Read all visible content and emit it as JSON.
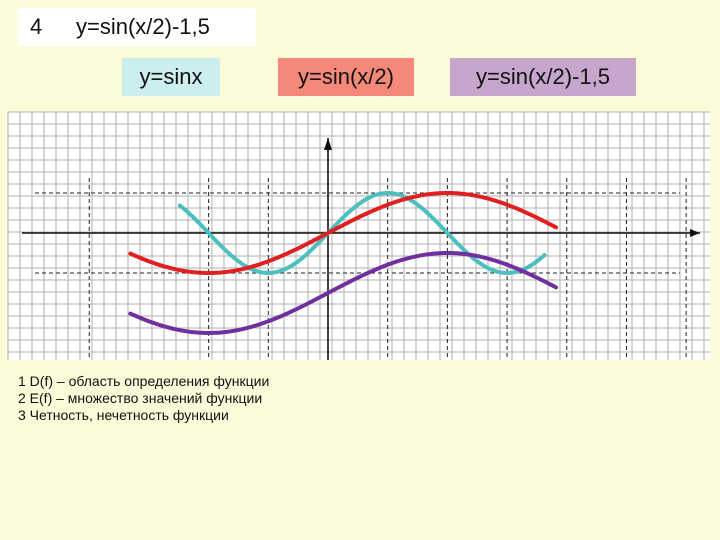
{
  "title": {
    "number": "4",
    "formula": "y=sin(x/2)-1,5"
  },
  "legend": [
    {
      "label": "y=sinx",
      "bg": "#cdeeee",
      "line": "#4dbfbf"
    },
    {
      "label": "y=sin(x/2)",
      "bg": "#f4897a",
      "line": "#e02020"
    },
    {
      "label": "y=sin(x/2)-1,5",
      "bg": "#c6a6cc",
      "line": "#7030a0"
    }
  ],
  "notes": [
    "1 D(f) – область определения функции",
    "2 E(f) – множество значений функции",
    "3 Четность, нечетность функции"
  ],
  "chart_data": {
    "type": "line",
    "title": "y=sin(x/2)-1,5",
    "xlabel": "",
    "ylabel": "",
    "xlim": [
      -5.2,
      5.8
    ],
    "ylim": [
      -2.5,
      1.5
    ],
    "grid": true,
    "series": [
      {
        "name": "y=sinx",
        "expr": "sin(x)",
        "color": "#4dbfbf",
        "domain": [
          -3.9,
          5.7
        ]
      },
      {
        "name": "y=sin(x/2)",
        "expr": "sin(x/2)",
        "color": "#e02020",
        "domain": [
          -5.2,
          6.0
        ]
      },
      {
        "name": "y=sin(x/2)-1,5",
        "expr": "sin(x/2)-1.5",
        "color": "#7030a0",
        "domain": [
          -5.2,
          6.0
        ]
      }
    ]
  }
}
